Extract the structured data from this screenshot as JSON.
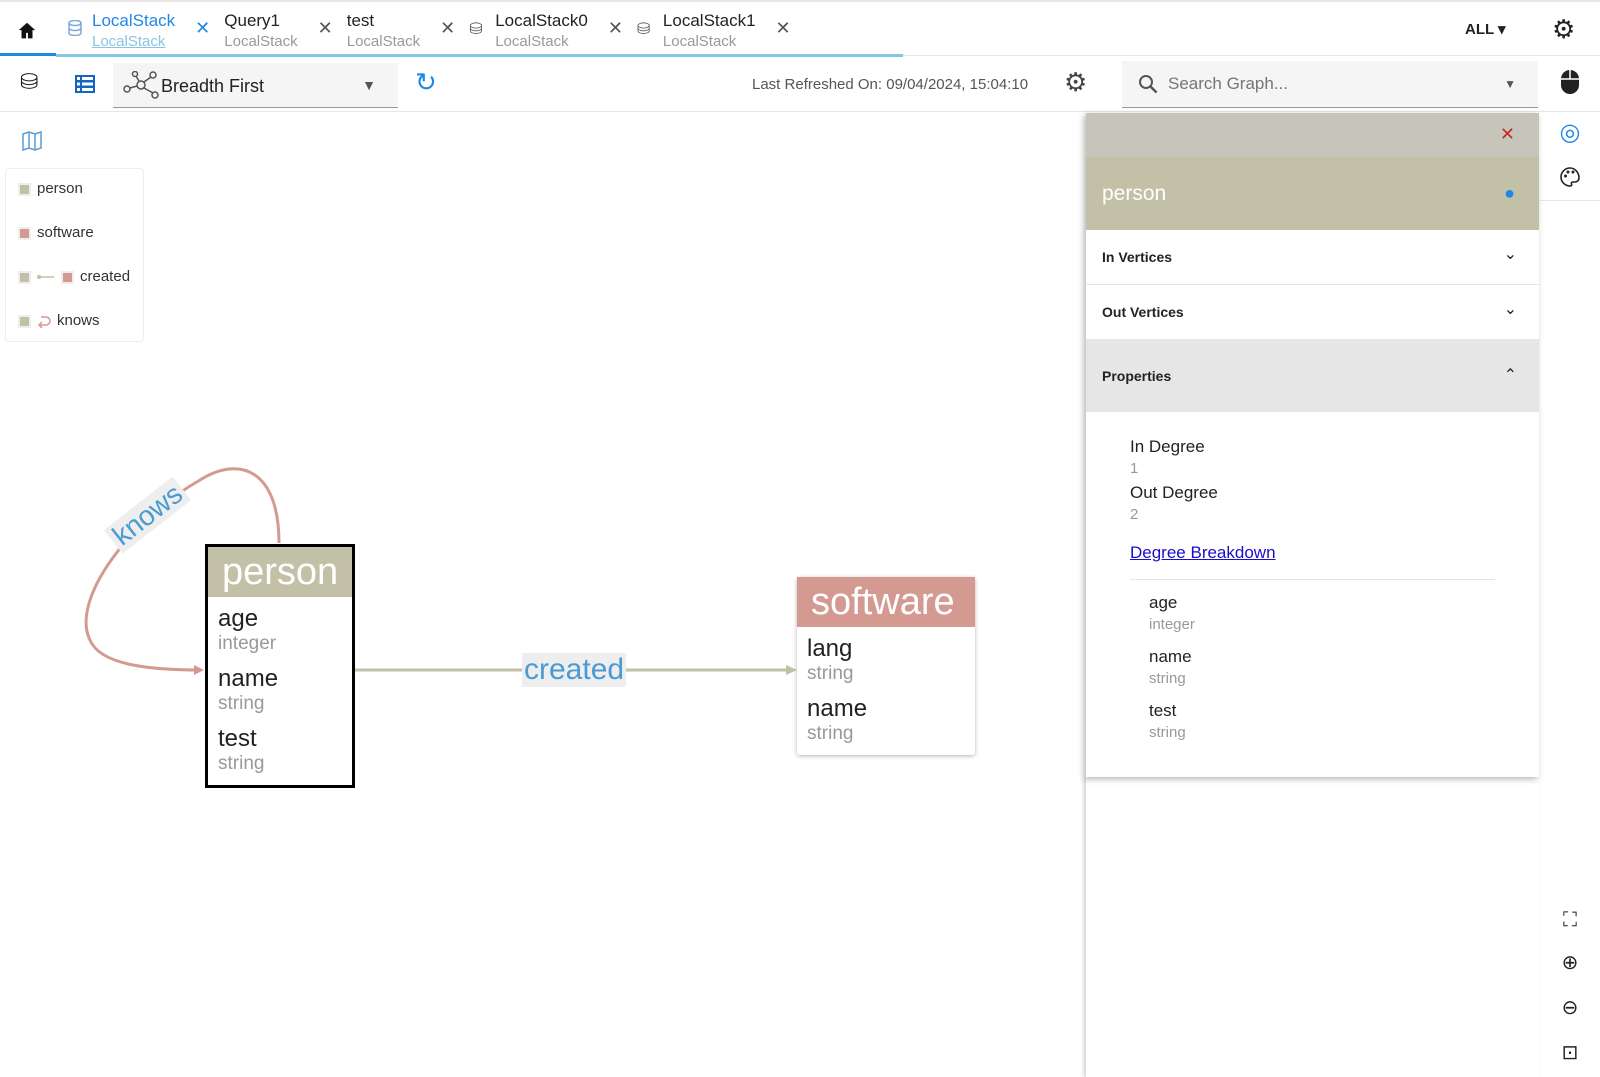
{
  "tabs": [
    {
      "title": "LocalStack",
      "subtitle": "LocalStack",
      "icon": "database-icon",
      "active": true
    },
    {
      "title": "Query1",
      "subtitle": "LocalStack",
      "icon": ""
    },
    {
      "title": "test",
      "subtitle": "LocalStack",
      "icon": ""
    },
    {
      "title": "LocalStack0",
      "subtitle": "LocalStack",
      "icon": "database-search-icon"
    },
    {
      "title": "LocalStack1",
      "subtitle": "LocalStack",
      "icon": "database-search-icon"
    }
  ],
  "filter": "ALL",
  "toolbar": {
    "layout": "Breadth First",
    "last_refreshed": "Last Refreshed On: 09/04/2024, 15:04:10",
    "search_placeholder": "Search Graph..."
  },
  "legend": [
    {
      "label": "person",
      "color": "#c2c0a6"
    },
    {
      "label": "software",
      "color": "#d49a92"
    },
    {
      "label": "created"
    },
    {
      "label": "knows"
    }
  ],
  "graph": {
    "nodes": [
      {
        "label": "person",
        "color": "#c2c0a6",
        "props": [
          {
            "name": "age",
            "type": "integer"
          },
          {
            "name": "name",
            "type": "string"
          },
          {
            "name": "test",
            "type": "string"
          }
        ]
      },
      {
        "label": "software",
        "color": "#d49a92",
        "props": [
          {
            "name": "lang",
            "type": "string"
          },
          {
            "name": "name",
            "type": "string"
          }
        ]
      }
    ],
    "edges": [
      {
        "label": "knows",
        "color": "#d49a92"
      },
      {
        "label": "created",
        "color": "#c2c0a6"
      }
    ]
  },
  "panel": {
    "title": "person",
    "in_vertices": "In Vertices",
    "out_vertices": "Out Vertices",
    "properties": "Properties",
    "in_degree_label": "In Degree",
    "in_degree": "1",
    "out_degree_label": "Out Degree",
    "out_degree": "2",
    "breakdown": "Degree Breakdown",
    "props": [
      {
        "name": "age",
        "type": "integer"
      },
      {
        "name": "name",
        "type": "string"
      },
      {
        "name": "test",
        "type": "string"
      }
    ]
  }
}
